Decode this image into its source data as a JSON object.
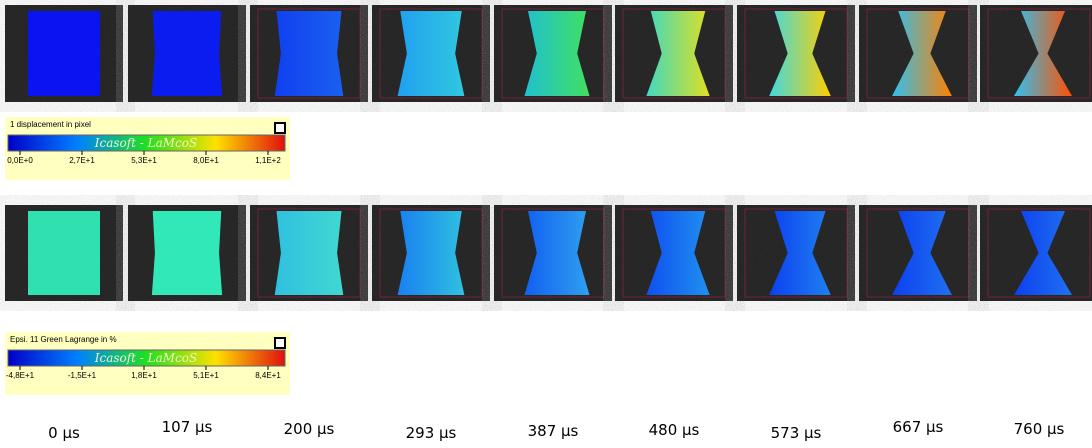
{
  "displacement_row": {
    "colorbar": {
      "title": "1 displacement in pixel",
      "watermark": "Icasoft - LaMcoS",
      "ticks": [
        "0,0E+0",
        "2,7E+1",
        "5,3E+1",
        "8,0E+1",
        "1,1E+2"
      ]
    }
  },
  "strain_row": {
    "colorbar": {
      "title": "Epsi. 11 Green Lagrange in %",
      "watermark": "Icasoft - LaMcoS",
      "ticks": [
        "-4,8E+1",
        "-1,5E+1",
        "1,8E+1",
        "5,1E+1",
        "8,4E+1"
      ]
    }
  },
  "time_labels": [
    "0 µs",
    "107 µs",
    "200 µs",
    "293 µs",
    "387 µs",
    "480 µs",
    "573 µs",
    "667 µs",
    "760 µs"
  ]
}
